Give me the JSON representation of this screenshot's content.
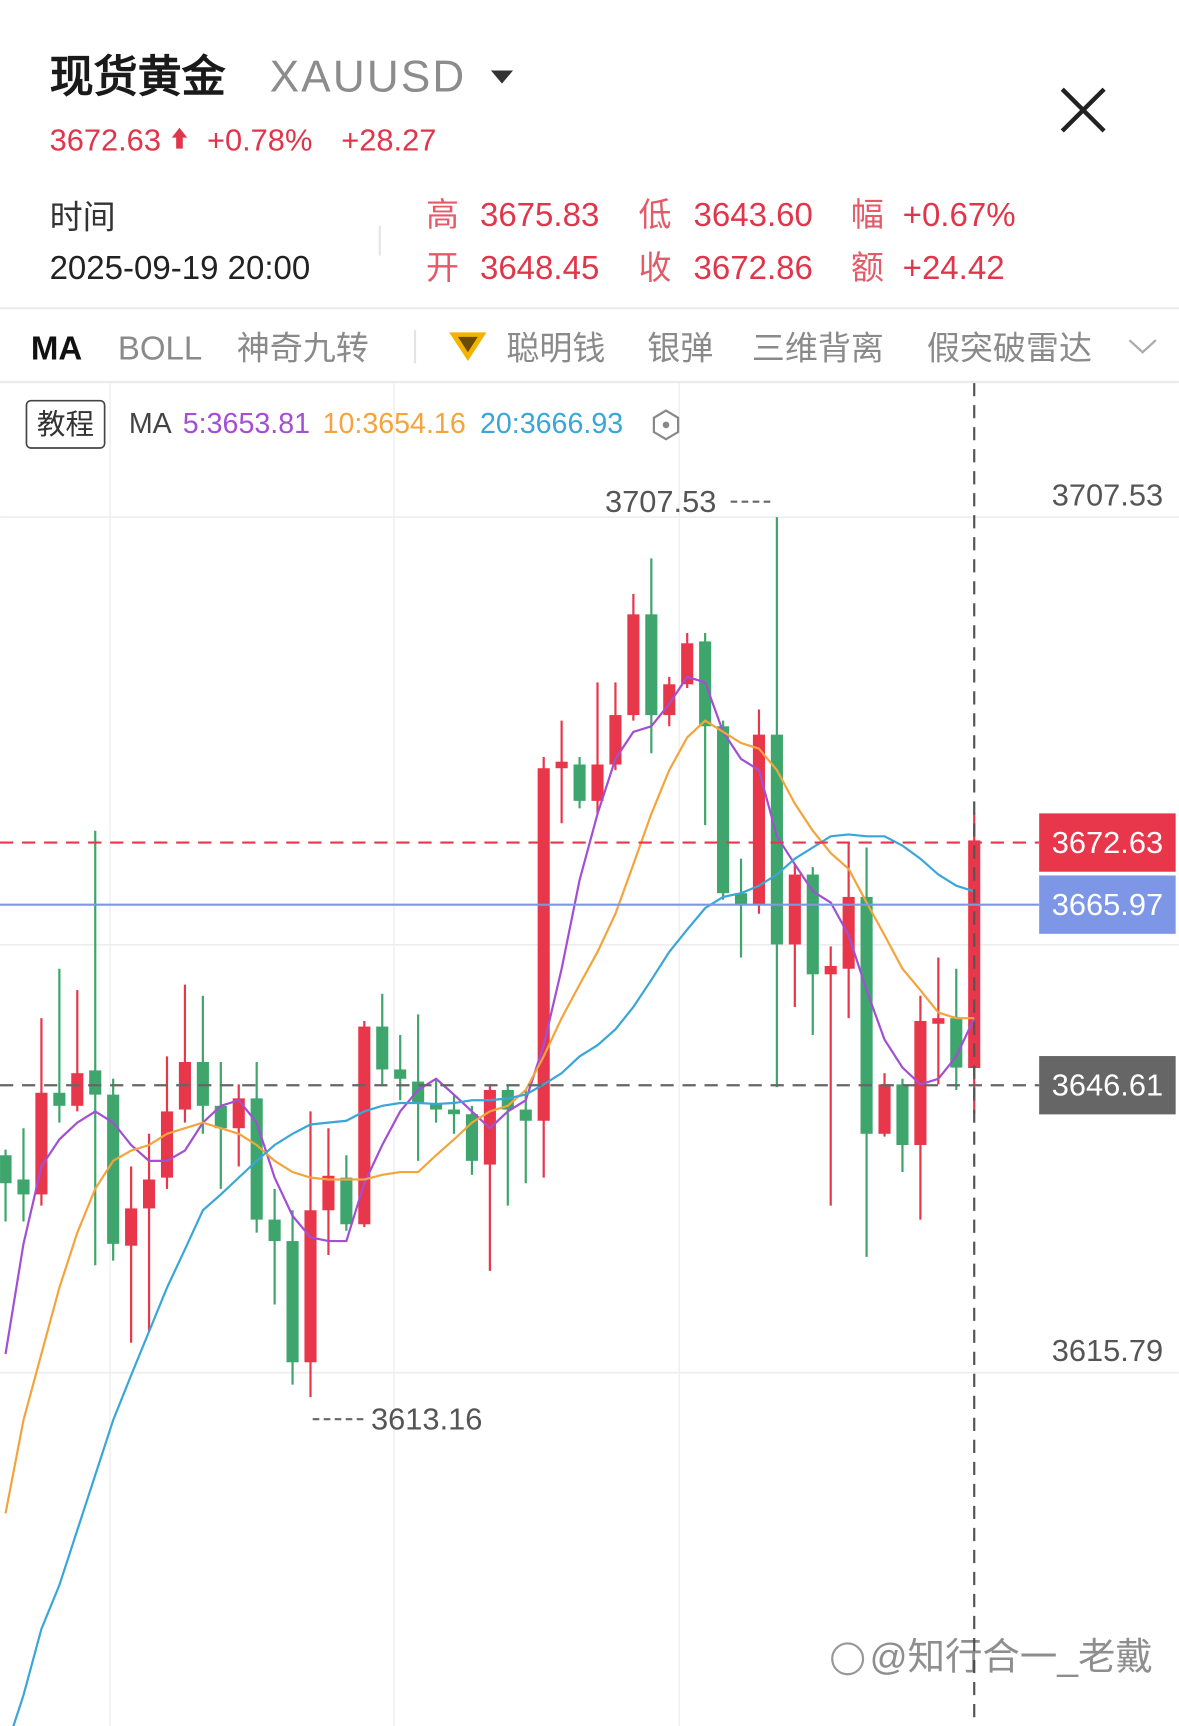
{
  "header": {
    "title": "现货黄金",
    "symbol": "XAUUSD",
    "price": "3672.63",
    "change_pct": "+0.78%",
    "change": "+28.27"
  },
  "info": {
    "time_label": "时间",
    "time": "2025-09-19 20:00",
    "stats": [
      {
        "label": "高",
        "value": "3675.83"
      },
      {
        "label": "低",
        "value": "3643.60"
      },
      {
        "label": "幅",
        "value": "+0.67%"
      },
      {
        "label": "开",
        "value": "3648.45"
      },
      {
        "label": "收",
        "value": "3672.86"
      },
      {
        "label": "额",
        "value": "+24.42"
      }
    ]
  },
  "tabs": [
    "MA",
    "BOLL",
    "神奇九转",
    "聪明钱",
    "银弹",
    "三维背离",
    "假突破雷达"
  ],
  "chart_data": {
    "type": "candlestick",
    "tutorial_button": "教程",
    "indicator": "MA",
    "open": [
      3639.1,
      3636.5,
      3634.9,
      3645.8,
      3644.4,
      3648.2,
      3645.6,
      3629.4,
      3633.4,
      3636.7,
      3644.0,
      3649.1,
      3644.4,
      3642.0,
      3645.2,
      3632.2,
      3629.9,
      3616.9,
      3633.2,
      3636.7,
      3631.7,
      3652.9,
      3648.3,
      3647.0,
      3644.6,
      3644.0,
      3643.5,
      3638.1,
      3646.1,
      3644.0,
      3642.8,
      3680.6,
      3681.0,
      3677.1,
      3681.0,
      3686.3,
      3697.1,
      3686.3,
      3689.6,
      3694.2,
      3685.1,
      3667.2,
      3666.0,
      3684.2,
      3661.7,
      3669.2,
      3658.5,
      3659.1,
      3666.8,
      3641.4,
      3646.7,
      3640.2,
      3653.2,
      3653.8,
      3648.45
    ],
    "high": [
      3639.7,
      3642.0,
      3653.8,
      3659.1,
      3656.8,
      3673.9,
      3647.3,
      3637.9,
      3641.4,
      3649.7,
      3657.4,
      3656.2,
      3649.1,
      3646.7,
      3649.1,
      3635.5,
      3633.2,
      3643.8,
      3642.0,
      3639.1,
      3653.5,
      3656.4,
      3652.0,
      3654.2,
      3647.3,
      3645.6,
      3644.4,
      3646.7,
      3646.7,
      3646.1,
      3681.8,
      3685.7,
      3681.8,
      3689.8,
      3689.8,
      3699.3,
      3703.1,
      3690.4,
      3695.1,
      3695.1,
      3685.7,
      3670.9,
      3686.9,
      3707.53,
      3670.3,
      3670.0,
      3661.5,
      3672.7,
      3672.1,
      3647.9,
      3647.3,
      3656.2,
      3660.3,
      3659.1,
      3675.83
    ],
    "low": [
      3632.0,
      3632.0,
      3633.7,
      3642.6,
      3643.8,
      3627.3,
      3627.8,
      3619.0,
      3620.2,
      3635.5,
      3642.6,
      3641.4,
      3635.5,
      3637.9,
      3630.8,
      3623.1,
      3614.5,
      3613.16,
      3628.4,
      3631.0,
      3631.4,
      3646.7,
      3645.0,
      3638.5,
      3642.6,
      3641.4,
      3637.0,
      3626.7,
      3633.7,
      3636.1,
      3636.7,
      3674.7,
      3676.3,
      3675.7,
      3680.4,
      3685.7,
      3682.2,
      3685.1,
      3689.2,
      3674.5,
      3666.5,
      3660.3,
      3665.0,
      3646.4,
      3655.0,
      3652.0,
      3633.7,
      3653.8,
      3628.2,
      3641.1,
      3637.3,
      3632.2,
      3646.7,
      3646.1,
      3643.6
    ],
    "close": [
      3636.1,
      3634.9,
      3645.8,
      3644.4,
      3647.9,
      3645.6,
      3629.6,
      3633.4,
      3636.5,
      3643.8,
      3649.1,
      3644.4,
      3642.0,
      3645.2,
      3632.2,
      3629.9,
      3616.9,
      3633.2,
      3636.9,
      3631.7,
      3652.9,
      3648.3,
      3647.3,
      3644.6,
      3644.0,
      3643.5,
      3638.5,
      3646.1,
      3644.0,
      3642.8,
      3680.6,
      3681.3,
      3677.1,
      3681.0,
      3686.3,
      3697.1,
      3686.3,
      3689.6,
      3694.0,
      3685.1,
      3667.2,
      3666.0,
      3684.2,
      3661.7,
      3669.2,
      3658.5,
      3659.4,
      3666.8,
      3641.4,
      3646.7,
      3640.2,
      3653.5,
      3653.8,
      3648.5,
      3672.86
    ],
    "up_color": "#e8364b",
    "down_color": "#3ea66d",
    "series": [
      {
        "name": "5:3653.81",
        "color": "#a34fd4",
        "values": [
          3617.8,
          3629.6,
          3637.9,
          3640.8,
          3642.6,
          3643.8,
          3642.6,
          3640.2,
          3638.5,
          3638.5,
          3639.6,
          3642.6,
          3644.4,
          3645.0,
          3642.6,
          3636.7,
          3632.6,
          3630.3,
          3629.9,
          3629.9,
          3636.1,
          3640.2,
          3643.8,
          3646.1,
          3647.3,
          3645.6,
          3643.8,
          3642.0,
          3643.8,
          3645.0,
          3650.9,
          3659.1,
          3668.6,
          3675.7,
          3681.6,
          3684.5,
          3685.1,
          3687.5,
          3690.4,
          3689.8,
          3684.5,
          3681.6,
          3680.4,
          3673.3,
          3670.3,
          3667.4,
          3666.2,
          3662.7,
          3656.8,
          3651.5,
          3648.5,
          3646.7,
          3647.3,
          3649.7,
          3653.8
        ]
      },
      {
        "name": "10:3654.16",
        "color": "#f4a43c",
        "values": [
          3600.7,
          3610.7,
          3617.8,
          3624.9,
          3630.8,
          3635.5,
          3638.5,
          3639.6,
          3640.2,
          3641.4,
          3642.0,
          3642.6,
          3642.0,
          3641.4,
          3640.2,
          3638.5,
          3637.3,
          3636.7,
          3636.5,
          3636.5,
          3636.5,
          3637.0,
          3637.3,
          3637.3,
          3639.1,
          3640.8,
          3642.6,
          3643.8,
          3644.4,
          3646.1,
          3649.7,
          3653.8,
          3657.4,
          3660.9,
          3665.0,
          3670.3,
          3675.7,
          3680.4,
          3683.9,
          3685.7,
          3684.5,
          3683.3,
          3682.7,
          3680.4,
          3676.8,
          3673.9,
          3671.5,
          3669.8,
          3666.2,
          3662.7,
          3659.1,
          3656.8,
          3654.4,
          3653.8,
          3653.8
        ]
      },
      {
        "name": "20:3666.93",
        "color": "#3aa6d8",
        "values": [
          3575.3,
          3581.2,
          3588.3,
          3593.0,
          3598.9,
          3604.8,
          3610.7,
          3615.5,
          3620.2,
          3624.9,
          3629.0,
          3633.2,
          3634.9,
          3636.7,
          3638.5,
          3640.2,
          3641.4,
          3642.4,
          3642.6,
          3642.8,
          3643.8,
          3644.4,
          3644.7,
          3644.7,
          3644.6,
          3644.7,
          3645.0,
          3645.0,
          3645.2,
          3645.6,
          3646.7,
          3647.9,
          3649.7,
          3650.9,
          3652.6,
          3655.0,
          3657.9,
          3660.9,
          3663.3,
          3665.6,
          3666.8,
          3667.2,
          3668.0,
          3669.2,
          3670.9,
          3672.1,
          3673.3,
          3673.5,
          3673.3,
          3673.3,
          3672.3,
          3670.9,
          3669.2,
          3668.0,
          3667.4
        ]
      }
    ],
    "ylim": [
      3577.9,
      3721.9
    ],
    "yticks": [
      3707.53,
      3615.79
    ],
    "grid": true,
    "reference_lines": [
      {
        "value": 3672.63,
        "color": "#e8364b",
        "style": "dashed"
      },
      {
        "value": 3665.97,
        "color": "#7d97e6",
        "style": "solid"
      },
      {
        "value": 3646.61,
        "color": "#666666",
        "style": "dashed"
      }
    ]
  },
  "watermark": "@知行合一_老戴"
}
